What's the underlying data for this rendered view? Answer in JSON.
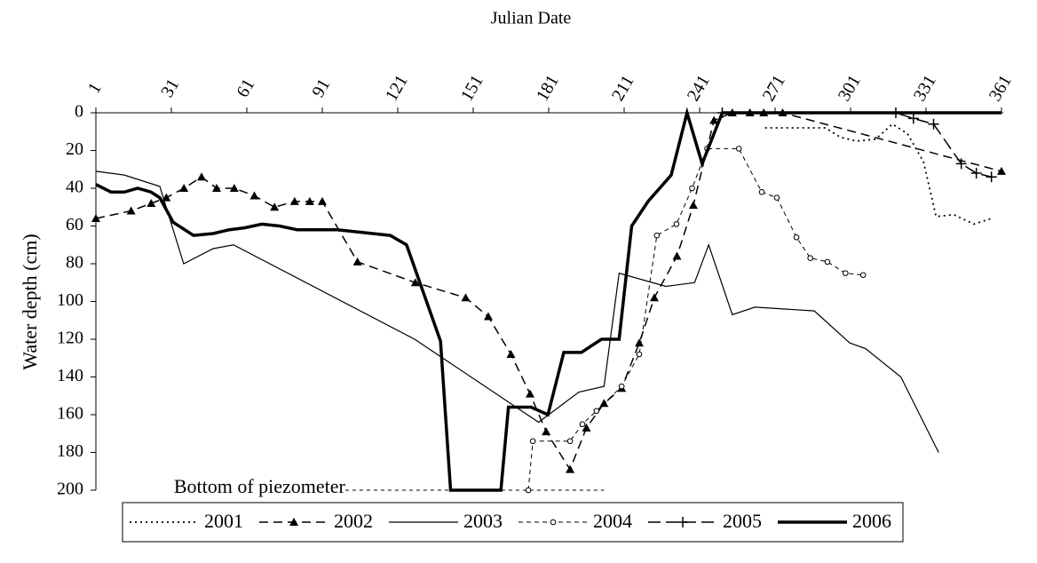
{
  "chart_data": {
    "type": "line",
    "title": "Julian Date",
    "y_label": "Water depth (cm)",
    "xlim": [
      1,
      361
    ],
    "xticks": [
      1,
      31,
      61,
      91,
      121,
      151,
      181,
      211,
      241,
      271,
      301,
      331,
      361
    ],
    "ylim": [
      0,
      200
    ],
    "yticks": [
      0,
      20,
      40,
      60,
      80,
      100,
      120,
      140,
      160,
      180,
      200
    ],
    "y_inverted": true,
    "annotation": {
      "text": "Bottom of piezometer",
      "y": 200,
      "x": [
        32,
        203
      ]
    },
    "series": [
      {
        "name": "2001",
        "color": "#000000",
        "line_style": "dotted",
        "marker": "none",
        "x": [
          267,
          274.6,
          284,
          291,
          297,
          303.5,
          311,
          317.6,
          323.6,
          330,
          335,
          342,
          350,
          357
        ],
        "values": [
          8,
          8,
          8,
          8,
          13,
          15,
          14,
          6,
          11,
          26,
          55,
          54,
          59,
          56
        ]
      },
      {
        "name": "2002",
        "color": "#000000",
        "line_style": "dashed",
        "marker": "triangle",
        "x": [
          1,
          15,
          23,
          29,
          36,
          43,
          49,
          56,
          64,
          72,
          80,
          86,
          91,
          105,
          128,
          148,
          157,
          166,
          173.6,
          180,
          189.5,
          196,
          203,
          210,
          217,
          223,
          232,
          238.5,
          246.7,
          254,
          261,
          266.5,
          274,
          361
        ],
        "values": [
          56,
          52,
          48,
          45,
          40,
          34,
          40,
          40,
          44,
          50,
          47,
          47,
          47,
          79,
          90,
          98,
          108,
          128,
          149,
          169,
          189,
          167,
          154,
          146,
          122,
          98,
          76,
          49,
          4,
          0,
          0,
          0,
          0,
          31
        ]
      },
      {
        "name": "2003",
        "color": "#000000",
        "line_style": "solid",
        "marker": "none",
        "x": [
          1,
          12.3,
          26.4,
          35.9,
          47.6,
          55.7,
          127.7,
          177,
          193,
          203,
          209,
          227.6,
          239,
          244.6,
          254,
          263,
          286.6,
          300.7,
          307,
          321,
          336
        ],
        "values": [
          31,
          33,
          39,
          80,
          72,
          70,
          120,
          164,
          148,
          145,
          85,
          92,
          90,
          70,
          107,
          103,
          105,
          122,
          125,
          140,
          180
        ]
      },
      {
        "name": "2004",
        "color": "#000000",
        "line_style": "short-dash",
        "marker": "circle",
        "x": [
          172.9,
          174.7,
          189.5,
          194.4,
          200,
          210,
          217,
          224,
          231.8,
          238,
          244,
          256.6,
          265.7,
          271.7,
          279.5,
          285,
          291.8,
          299,
          306
        ],
        "values": [
          200,
          174,
          174,
          165,
          158,
          145,
          128,
          65,
          59,
          40,
          19,
          19,
          42,
          45,
          66,
          77,
          79,
          85,
          86
        ]
      },
      {
        "name": "2005",
        "color": "#000000",
        "line_style": "long-dash",
        "marker": "plus",
        "x": [
          250,
          319,
          326,
          334,
          345,
          351,
          357
        ],
        "values": [
          0,
          0,
          3,
          6,
          27,
          32,
          34
        ]
      },
      {
        "name": "2006",
        "color": "#000000",
        "line_style": "thick",
        "marker": "none",
        "x": [
          1,
          7,
          12.3,
          17.6,
          22.9,
          26.4,
          31.7,
          39.8,
          47.6,
          54,
          60,
          67,
          74,
          81,
          97,
          118,
          124.5,
          138,
          142,
          162,
          165,
          174,
          180.7,
          187,
          194,
          202,
          209,
          214,
          220.5,
          229.7,
          236,
          242,
          250,
          361
        ],
        "values": [
          38,
          42,
          42,
          40,
          42,
          45,
          58,
          65,
          64,
          62,
          61,
          59,
          60,
          62,
          62,
          65,
          70,
          121,
          200,
          200,
          156,
          156,
          160,
          127,
          127,
          120,
          120,
          60,
          47,
          33,
          0,
          27,
          0,
          0
        ]
      }
    ]
  }
}
